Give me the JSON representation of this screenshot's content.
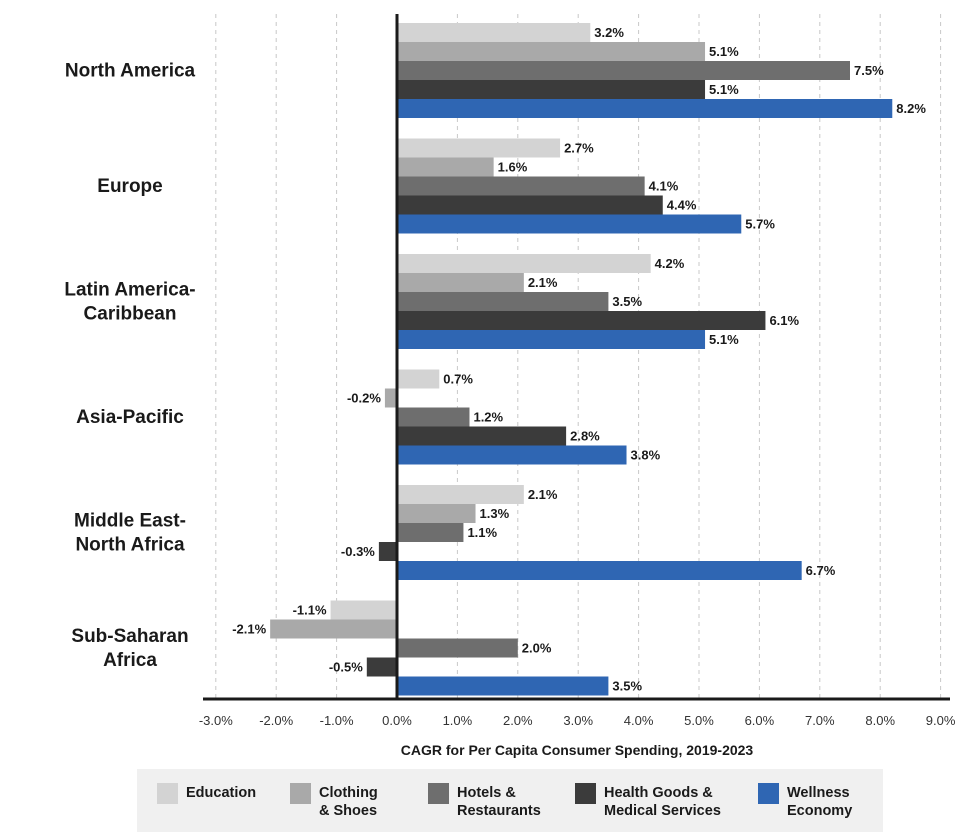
{
  "chart_data": {
    "type": "bar",
    "orientation": "horizontal",
    "title": "",
    "xlabel": "CAGR for Per Capita Consumer Spending, 2019-2023",
    "ylabel": "",
    "xlim": [
      -3.0,
      9.0
    ],
    "x_ticks": [
      "-3.0%",
      "-2.0%",
      "-1.0%",
      "0.0%",
      "1.0%",
      "2.0%",
      "3.0%",
      "4.0%",
      "5.0%",
      "6.0%",
      "7.0%",
      "8.0%",
      "9.0%"
    ],
    "x_tick_values": [
      -3,
      -2,
      -1,
      0,
      1,
      2,
      3,
      4,
      5,
      6,
      7,
      8,
      9
    ],
    "grid": "vertical dashed",
    "legend_position": "bottom",
    "categories": [
      [
        "North America"
      ],
      [
        "Europe"
      ],
      [
        "Latin America-",
        "Caribbean"
      ],
      [
        "Asia-Pacific"
      ],
      [
        "Middle East-",
        "North Africa"
      ],
      [
        "Sub-Saharan",
        "Africa"
      ]
    ],
    "series": [
      {
        "name": [
          "Education"
        ],
        "color": "#d3d3d3",
        "values": [
          3.2,
          2.7,
          4.2,
          0.7,
          2.1,
          -1.1
        ],
        "labels": [
          "3.2%",
          "2.7%",
          "4.2%",
          "0.7%",
          "2.1%",
          "-1.1%"
        ]
      },
      {
        "name": [
          "Clothing",
          "& Shoes"
        ],
        "color": "#a9a9a9",
        "values": [
          5.1,
          1.6,
          2.1,
          -0.2,
          1.3,
          -2.1
        ],
        "labels": [
          "5.1%",
          "1.6%",
          "2.1%",
          "-0.2%",
          "1.3%",
          "-2.1%"
        ]
      },
      {
        "name": [
          "Hotels &",
          "Restaurants"
        ],
        "color": "#6e6e6e",
        "values": [
          7.5,
          4.1,
          3.5,
          1.2,
          1.1,
          2.0
        ],
        "labels": [
          "7.5%",
          "4.1%",
          "3.5%",
          "1.2%",
          "1.1%",
          "2.0%"
        ]
      },
      {
        "name": [
          "Health Goods &",
          "Medical Services"
        ],
        "color": "#3b3b3b",
        "values": [
          5.1,
          4.4,
          6.1,
          2.8,
          -0.3,
          -0.5
        ],
        "labels": [
          "5.1%",
          "4.4%",
          "6.1%",
          "2.8%",
          "-0.3%",
          "-0.5%"
        ]
      },
      {
        "name": [
          "Wellness",
          "Economy"
        ],
        "color": "#2f66b3",
        "values": [
          8.2,
          5.7,
          5.1,
          3.8,
          6.7,
          3.5
        ],
        "labels": [
          "8.2%",
          "5.7%",
          "5.1%",
          "3.8%",
          "6.7%",
          "3.5%"
        ]
      }
    ],
    "colors": {
      "axis": "#1a1a1a",
      "grid": "#c8c8c8",
      "legend_bg": "#f0f0f0"
    }
  }
}
